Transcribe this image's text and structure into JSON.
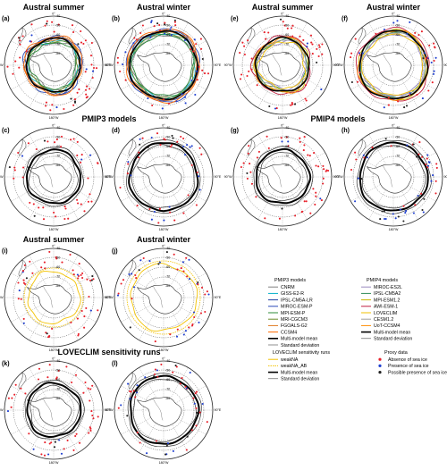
{
  "headers": {
    "austral_summer": "Austral summer",
    "austral_winter": "Austral winter",
    "pmip3_models": "PMIP3 models",
    "pmip4_models": "PMIP4 models",
    "loveclim_runs": "LOVECLIM sensitivity runs"
  },
  "panels": [
    {
      "label": "(a)",
      "group": "PMIP3",
      "season": "summer",
      "lines": "multi"
    },
    {
      "label": "(b)",
      "group": "PMIP3",
      "season": "winter",
      "lines": "multi"
    },
    {
      "label": "(c)",
      "group": "PMIP3",
      "season": "summer",
      "lines": "mean"
    },
    {
      "label": "(d)",
      "group": "PMIP3",
      "season": "winter",
      "lines": "mean"
    },
    {
      "label": "(e)",
      "group": "PMIP4",
      "season": "summer",
      "lines": "multi"
    },
    {
      "label": "(f)",
      "group": "PMIP4",
      "season": "winter",
      "lines": "multi"
    },
    {
      "label": "(g)",
      "group": "PMIP4",
      "season": "summer",
      "lines": "mean"
    },
    {
      "label": "(h)",
      "group": "PMIP4",
      "season": "winter",
      "lines": "mean"
    },
    {
      "label": "(i)",
      "group": "LOVECLIM",
      "season": "summer",
      "lines": "love"
    },
    {
      "label": "(j)",
      "group": "LOVECLIM",
      "season": "winter",
      "lines": "love"
    },
    {
      "label": "(k)",
      "group": "LOVECLIM",
      "season": "summer",
      "lines": "mean"
    },
    {
      "label": "(l)",
      "group": "LOVECLIM",
      "season": "winter",
      "lines": "mean"
    }
  ],
  "map_labels": {
    "lon_top": "0°",
    "lon_bottom": "180°W",
    "lon_left": "90°W",
    "lon_right": "90°E",
    "lat": [
      "-80",
      "-70",
      "-60",
      "-50",
      "-40"
    ]
  },
  "legend": {
    "pmip3": {
      "title": "PMIP3 models",
      "items": [
        {
          "label": "CNRM",
          "color": "#808080"
        },
        {
          "label": "GISS-E2-R",
          "color": "#00b0c8"
        },
        {
          "label": "IPSL-CM5A-LR",
          "color": "#1f3fa0"
        },
        {
          "label": "MIROC-ESM-P",
          "color": "#2b4ab8"
        },
        {
          "label": "MPI-ESM-P",
          "color": "#2e8b3a"
        },
        {
          "label": "MRI-CGCM3",
          "color": "#6a8c2a"
        },
        {
          "label": "FGOALS-G2",
          "color": "#e07820"
        },
        {
          "label": "CCSM4",
          "color": "#ff6a00"
        },
        {
          "label": "Multi-model mean",
          "color": "#000000"
        },
        {
          "label": "Standard deviation",
          "color": "#444444"
        }
      ]
    },
    "pmip4": {
      "title": "PMIP4 models",
      "items": [
        {
          "label": "MIROC-ES2L",
          "color": "#9a8ac0"
        },
        {
          "label": "IPSL-CM5A2",
          "color": "#2e8b57"
        },
        {
          "label": "MPI-ESM1.2",
          "color": "#c8b400"
        },
        {
          "label": "AWI-ESM-1",
          "color": "#c02040"
        },
        {
          "label": "LOVECLIM",
          "color": "#f0c000"
        },
        {
          "label": "CESM1.2",
          "color": "#a0a0a0"
        },
        {
          "label": "UoT-CCSM4",
          "color": "#ff8c00"
        },
        {
          "label": "Multi-model mean",
          "color": "#000000"
        },
        {
          "label": "Standard deviation",
          "color": "#444444"
        }
      ]
    },
    "loveclim": {
      "title": "LOVECLIM sensitivity runs",
      "items": [
        {
          "label": "weakNA",
          "color": "#f2c200"
        },
        {
          "label": "weakNA_AB",
          "color": "#f2c200"
        },
        {
          "label": "Multi-model mean",
          "color": "#000000"
        },
        {
          "label": "Standard deviation",
          "color": "#444444"
        }
      ]
    },
    "proxy": {
      "title": "Proxy data",
      "items": [
        {
          "label": "Absence of sea ice",
          "color": "#e8202a"
        },
        {
          "label": "Presence of sea ice",
          "color": "#1f3fd0"
        },
        {
          "label": "Possible presence of sea ice",
          "color": "#222222"
        }
      ]
    }
  }
}
